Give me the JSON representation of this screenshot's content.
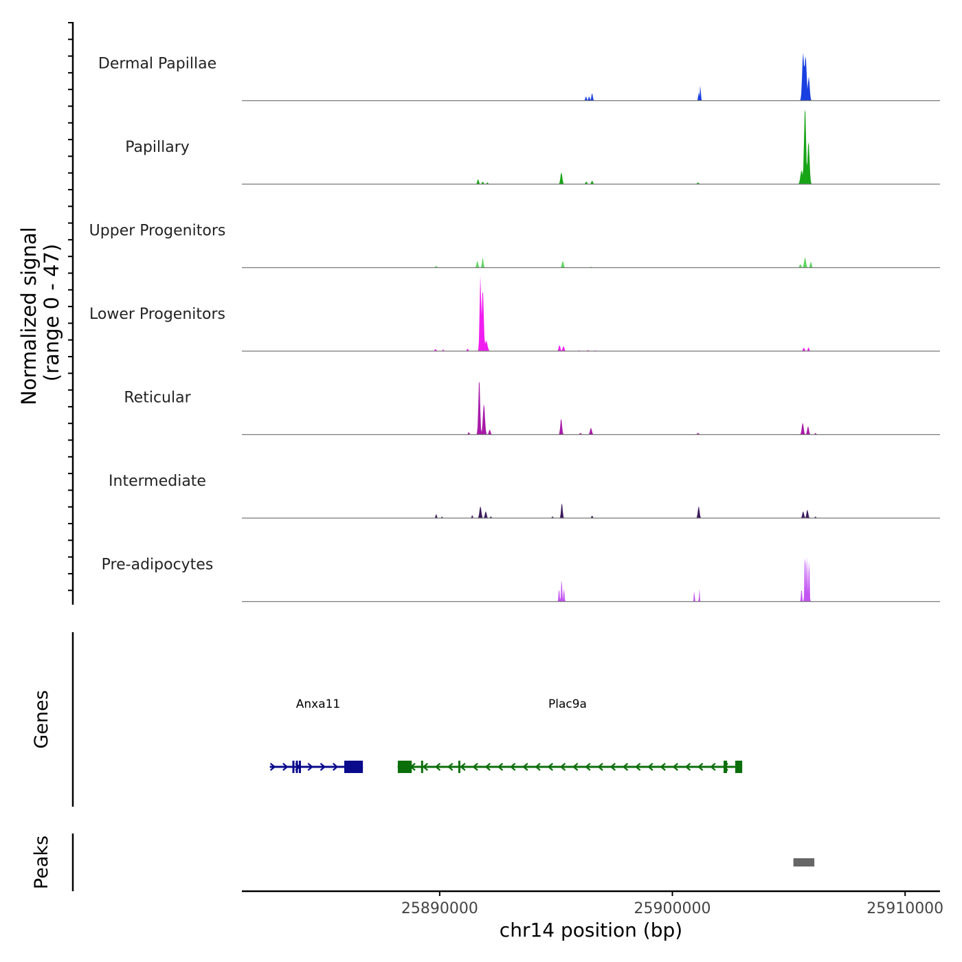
{
  "chart_data": {
    "type": "area",
    "title": "",
    "y_axis_title": "Normalized signal",
    "y_axis_subtitle": "(range 0 - 47)",
    "ylim": [
      0,
      47
    ],
    "xlabel": "chr14 position (bp)",
    "xlim": [
      25881500,
      25911500
    ],
    "x_ticks": [
      25890000,
      25900000,
      25910000
    ],
    "x_tick_labels": [
      "25890000",
      "25900000",
      "25910000"
    ],
    "tracks": [
      {
        "name": "Dermal Papillae",
        "color": "#1a3fe0",
        "peaks": [
          [
            25896290,
            2.5,
            80
          ],
          [
            25896420,
            2.5,
            80
          ],
          [
            25896550,
            4.5,
            80
          ],
          [
            25901130,
            5,
            60
          ],
          [
            25901200,
            9,
            60
          ],
          [
            25905620,
            28,
            120
          ],
          [
            25905720,
            26,
            140
          ],
          [
            25905860,
            14,
            110
          ]
        ]
      },
      {
        "name": "Papillary",
        "color": "#17a417",
        "peaks": [
          [
            25891650,
            3,
            90
          ],
          [
            25891850,
            1.5,
            90
          ],
          [
            25892050,
            1,
            90
          ],
          [
            25895230,
            7,
            110
          ],
          [
            25896300,
            1.5,
            100
          ],
          [
            25896550,
            2,
            100
          ],
          [
            25901100,
            1,
            100
          ],
          [
            25905700,
            45,
            120
          ],
          [
            25905850,
            25,
            120
          ],
          [
            25905550,
            8,
            140
          ]
        ]
      },
      {
        "name": "Upper Progenitors",
        "color": "#5ed65e",
        "peaks": [
          [
            25889850,
            1,
            100
          ],
          [
            25891620,
            4,
            90
          ],
          [
            25891850,
            6,
            80
          ],
          [
            25895290,
            4,
            100
          ],
          [
            25896500,
            0.5,
            100
          ],
          [
            25905700,
            6,
            110
          ],
          [
            25905950,
            3.5,
            90
          ],
          [
            25905500,
            2,
            100
          ]
        ]
      },
      {
        "name": "Lower Progenitors",
        "color": "#f01df0",
        "peaks": [
          [
            25889820,
            1.2,
            100
          ],
          [
            25890150,
            1,
            80
          ],
          [
            25891200,
            1.5,
            80
          ],
          [
            25891750,
            44,
            90
          ],
          [
            25891850,
            36,
            120
          ],
          [
            25892000,
            6,
            150
          ],
          [
            25895150,
            3.5,
            100
          ],
          [
            25895320,
            3,
            100
          ],
          [
            25895980,
            0.5,
            80
          ],
          [
            25896380,
            0.6,
            100
          ],
          [
            25896680,
            0.5,
            80
          ],
          [
            25905650,
            2,
            100
          ],
          [
            25905850,
            2.3,
            80
          ]
        ]
      },
      {
        "name": "Reticular",
        "color": "#a81aa8",
        "peaks": [
          [
            25891250,
            1.5,
            80
          ],
          [
            25891700,
            33,
            100
          ],
          [
            25891900,
            18,
            120
          ],
          [
            25892150,
            3,
            100
          ],
          [
            25895220,
            9.5,
            100
          ],
          [
            25896050,
            1,
            100
          ],
          [
            25896500,
            4,
            110
          ],
          [
            25901100,
            1,
            100
          ],
          [
            25905600,
            7,
            110
          ],
          [
            25905830,
            5,
            100
          ],
          [
            25906150,
            1,
            80
          ]
        ]
      },
      {
        "name": "Intermediate",
        "color": "#3c1a5c",
        "peaks": [
          [
            25889850,
            2.5,
            70
          ],
          [
            25890100,
            1,
            60
          ],
          [
            25891400,
            2,
            60
          ],
          [
            25891750,
            7,
            110
          ],
          [
            25891980,
            4,
            100
          ],
          [
            25892200,
            1,
            80
          ],
          [
            25894850,
            1,
            80
          ],
          [
            25895250,
            9,
            90
          ],
          [
            25896550,
            1.5,
            80
          ],
          [
            25901130,
            7,
            100
          ],
          [
            25905620,
            4,
            100
          ],
          [
            25905800,
            5,
            100
          ],
          [
            25906150,
            1,
            70
          ]
        ]
      },
      {
        "name": "Pre-adipocytes",
        "color": "#c355f2",
        "peaks": [
          [
            25895130,
            8,
            60
          ],
          [
            25895240,
            14,
            60
          ],
          [
            25895340,
            8,
            60
          ],
          [
            25900940,
            8,
            40
          ],
          [
            25901160,
            8,
            40
          ],
          [
            25905550,
            8,
            60
          ],
          [
            25905700,
            30,
            60
          ],
          [
            25905780,
            28,
            60
          ],
          [
            25905870,
            26,
            60
          ]
        ]
      }
    ],
    "genes_track_label": "Genes",
    "genes": [
      {
        "name": "Anxa11",
        "strand": "+",
        "color": "#0a0a8c",
        "start": 25882700,
        "end": 25886700,
        "exons": [
          [
            25883670,
            25883730
          ],
          [
            25883820,
            25883880
          ],
          [
            25883950,
            25884020
          ],
          [
            25885900,
            25886700
          ]
        ]
      },
      {
        "name": "Plac9a",
        "strand": "-",
        "color": "#0a6e0a",
        "start": 25888200,
        "end": 25903000,
        "exons": [
          [
            25888200,
            25888800
          ],
          [
            25889200,
            25889260
          ],
          [
            25890800,
            25890860
          ],
          [
            25902200,
            25902350
          ],
          [
            25902700,
            25903000
          ]
        ]
      }
    ],
    "peaks_track_label": "Peaks",
    "peak_regions": [
      [
        25905200,
        25906100
      ]
    ]
  }
}
